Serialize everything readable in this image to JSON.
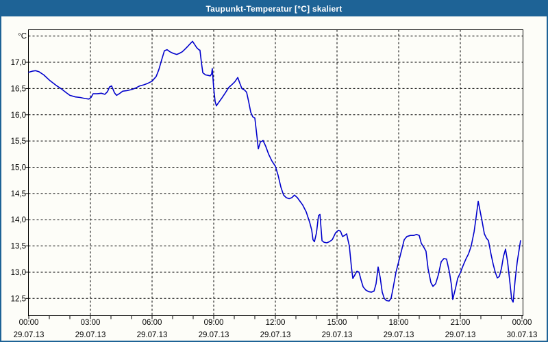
{
  "window": {
    "title": "Taupunkt-Temperatur [°C] skaliert",
    "titlebar_bg": "#1e6396",
    "titlebar_text_color": "#ffffff",
    "border_color": "#1e6396",
    "background_color": "#fdfdf8"
  },
  "chart_data": {
    "type": "line",
    "title": "Taupunkt-Temperatur [°C] skaliert",
    "unit_label": "°C",
    "grid": "dashed",
    "legend": "none",
    "axis_color": "#000000",
    "grid_color": "#000000",
    "x_axis": {
      "unit": "time",
      "start": "29.07.13 00:00",
      "end": "30.07.13 00:00",
      "major_tick_interval_hours": 3,
      "minor_tick_interval_hours": 1,
      "tick_labels": [
        {
          "time": "00:00",
          "date": "29.07.13"
        },
        {
          "time": "03:00",
          "date": "29.07.13"
        },
        {
          "time": "06:00",
          "date": "29.07.13"
        },
        {
          "time": "09:00",
          "date": "29.07.13"
        },
        {
          "time": "12:00",
          "date": "29.07.13"
        },
        {
          "time": "15:00",
          "date": "29.07.13"
        },
        {
          "time": "18:00",
          "date": "29.07.13"
        },
        {
          "time": "21:00",
          "date": "29.07.13"
        },
        {
          "time": "00:00",
          "date": "30.07.13"
        }
      ]
    },
    "y_axis": {
      "min": 12.5,
      "max": 17.5,
      "step": 0.5,
      "unit_label": "°C",
      "tick_labels": [
        "17,0",
        "16,5",
        "16,0",
        "15,5",
        "15,0",
        "14,5",
        "14,0",
        "13,5",
        "13,0",
        "12,5"
      ]
    },
    "series": [
      {
        "name": "Taupunkt-Temperatur",
        "color": "#0000cc",
        "points_hours_temp": [
          [
            0,
            16.81
          ],
          [
            0.17,
            16.83
          ],
          [
            0.33,
            16.84
          ],
          [
            0.5,
            16.82
          ],
          [
            0.73,
            16.76
          ],
          [
            1,
            16.66
          ],
          [
            1.33,
            16.56
          ],
          [
            1.6,
            16.49
          ],
          [
            1.83,
            16.42
          ],
          [
            2,
            16.37
          ],
          [
            2.27,
            16.34
          ],
          [
            2.5,
            16.33
          ],
          [
            2.73,
            16.31
          ],
          [
            2.93,
            16.3
          ],
          [
            3.03,
            16.33
          ],
          [
            3.13,
            16.4
          ],
          [
            3.33,
            16.4
          ],
          [
            3.53,
            16.41
          ],
          [
            3.7,
            16.39
          ],
          [
            3.83,
            16.44
          ],
          [
            3.93,
            16.53
          ],
          [
            4.03,
            16.55
          ],
          [
            4.17,
            16.42
          ],
          [
            4.27,
            16.37
          ],
          [
            4.4,
            16.4
          ],
          [
            4.57,
            16.45
          ],
          [
            4.77,
            16.46
          ],
          [
            5,
            16.48
          ],
          [
            5.2,
            16.51
          ],
          [
            5.4,
            16.55
          ],
          [
            5.6,
            16.57
          ],
          [
            5.8,
            16.6
          ],
          [
            6,
            16.64
          ],
          [
            6.2,
            16.73
          ],
          [
            6.33,
            16.86
          ],
          [
            6.47,
            17.05
          ],
          [
            6.6,
            17.22
          ],
          [
            6.73,
            17.24
          ],
          [
            6.87,
            17.2
          ],
          [
            7.03,
            17.17
          ],
          [
            7.2,
            17.15
          ],
          [
            7.33,
            17.17
          ],
          [
            7.47,
            17.2
          ],
          [
            7.6,
            17.25
          ],
          [
            7.73,
            17.3
          ],
          [
            7.87,
            17.36
          ],
          [
            7.97,
            17.4
          ],
          [
            8.07,
            17.34
          ],
          [
            8.17,
            17.28
          ],
          [
            8.27,
            17.24
          ],
          [
            8.33,
            17.23
          ],
          [
            8.4,
            17
          ],
          [
            8.47,
            16.8
          ],
          [
            8.6,
            16.76
          ],
          [
            8.73,
            16.75
          ],
          [
            8.83,
            16.74
          ],
          [
            8.9,
            16.78
          ],
          [
            8.93,
            16.88
          ],
          [
            9,
            16.5
          ],
          [
            9.07,
            16.25
          ],
          [
            9.13,
            16.17
          ],
          [
            9.27,
            16.25
          ],
          [
            9.4,
            16.32
          ],
          [
            9.57,
            16.42
          ],
          [
            9.73,
            16.52
          ],
          [
            9.9,
            16.58
          ],
          [
            10.03,
            16.63
          ],
          [
            10.17,
            16.71
          ],
          [
            10.27,
            16.6
          ],
          [
            10.37,
            16.5
          ],
          [
            10.5,
            16.47
          ],
          [
            10.6,
            16.43
          ],
          [
            10.7,
            16.25
          ],
          [
            10.8,
            16.05
          ],
          [
            10.9,
            15.96
          ],
          [
            11,
            15.94
          ],
          [
            11.1,
            15.6
          ],
          [
            11.17,
            15.35
          ],
          [
            11.27,
            15.48
          ],
          [
            11.4,
            15.51
          ],
          [
            11.53,
            15.4
          ],
          [
            11.67,
            15.25
          ],
          [
            11.83,
            15.12
          ],
          [
            12,
            15.02
          ],
          [
            12.13,
            14.85
          ],
          [
            12.27,
            14.62
          ],
          [
            12.4,
            14.47
          ],
          [
            12.53,
            14.42
          ],
          [
            12.67,
            14.4
          ],
          [
            12.8,
            14.42
          ],
          [
            12.93,
            14.47
          ],
          [
            13.07,
            14.42
          ],
          [
            13.2,
            14.35
          ],
          [
            13.33,
            14.28
          ],
          [
            13.5,
            14.15
          ],
          [
            13.67,
            13.95
          ],
          [
            13.77,
            13.8
          ],
          [
            13.83,
            13.62
          ],
          [
            13.9,
            13.58
          ],
          [
            14,
            13.75
          ],
          [
            14.1,
            14.08
          ],
          [
            14.17,
            14.1
          ],
          [
            14.27,
            13.6
          ],
          [
            14.37,
            13.57
          ],
          [
            14.5,
            13.56
          ],
          [
            14.63,
            13.58
          ],
          [
            14.77,
            13.62
          ],
          [
            14.93,
            13.75
          ],
          [
            15.07,
            13.8
          ],
          [
            15.17,
            13.78
          ],
          [
            15.27,
            13.68
          ],
          [
            15.37,
            13.7
          ],
          [
            15.47,
            13.73
          ],
          [
            15.53,
            13.62
          ],
          [
            15.6,
            13.5
          ],
          [
            15.7,
            13.1
          ],
          [
            15.77,
            12.88
          ],
          [
            15.87,
            12.95
          ],
          [
            15.97,
            13.02
          ],
          [
            16.07,
            13
          ],
          [
            16.17,
            12.85
          ],
          [
            16.27,
            12.72
          ],
          [
            16.4,
            12.66
          ],
          [
            16.53,
            12.63
          ],
          [
            16.67,
            12.62
          ],
          [
            16.8,
            12.64
          ],
          [
            16.9,
            12.78
          ],
          [
            17,
            13.1
          ],
          [
            17.1,
            12.9
          ],
          [
            17.2,
            12.62
          ],
          [
            17.3,
            12.5
          ],
          [
            17.4,
            12.46
          ],
          [
            17.53,
            12.45
          ],
          [
            17.63,
            12.5
          ],
          [
            17.73,
            12.7
          ],
          [
            17.87,
            13
          ],
          [
            18,
            13.2
          ],
          [
            18.13,
            13.4
          ],
          [
            18.27,
            13.62
          ],
          [
            18.4,
            13.68
          ],
          [
            18.57,
            13.7
          ],
          [
            18.73,
            13.7
          ],
          [
            18.87,
            13.72
          ],
          [
            19,
            13.7
          ],
          [
            19.1,
            13.55
          ],
          [
            19.23,
            13.47
          ],
          [
            19.33,
            13.4
          ],
          [
            19.43,
            13.07
          ],
          [
            19.57,
            12.8
          ],
          [
            19.67,
            12.73
          ],
          [
            19.8,
            12.78
          ],
          [
            19.93,
            12.95
          ],
          [
            20.07,
            13.2
          ],
          [
            20.2,
            13.26
          ],
          [
            20.33,
            13.25
          ],
          [
            20.47,
            13
          ],
          [
            20.57,
            12.75
          ],
          [
            20.63,
            12.48
          ],
          [
            20.77,
            12.7
          ],
          [
            20.87,
            12.88
          ],
          [
            21,
            12.99
          ],
          [
            21.13,
            13.12
          ],
          [
            21.27,
            13.25
          ],
          [
            21.4,
            13.35
          ],
          [
            21.53,
            13.5
          ],
          [
            21.67,
            13.77
          ],
          [
            21.77,
            14.05
          ],
          [
            21.87,
            14.35
          ],
          [
            21.97,
            14.15
          ],
          [
            22.07,
            13.95
          ],
          [
            22.17,
            13.73
          ],
          [
            22.27,
            13.65
          ],
          [
            22.37,
            13.6
          ],
          [
            22.5,
            13.33
          ],
          [
            22.6,
            13.15
          ],
          [
            22.7,
            13
          ],
          [
            22.8,
            12.89
          ],
          [
            22.9,
            12.92
          ],
          [
            23,
            13.07
          ],
          [
            23.1,
            13.3
          ],
          [
            23.2,
            13.44
          ],
          [
            23.3,
            13.2
          ],
          [
            23.4,
            12.85
          ],
          [
            23.5,
            12.48
          ],
          [
            23.57,
            12.43
          ],
          [
            23.67,
            12.86
          ],
          [
            23.77,
            13.2
          ],
          [
            23.87,
            13.45
          ],
          [
            23.93,
            13.6
          ]
        ]
      }
    ]
  }
}
